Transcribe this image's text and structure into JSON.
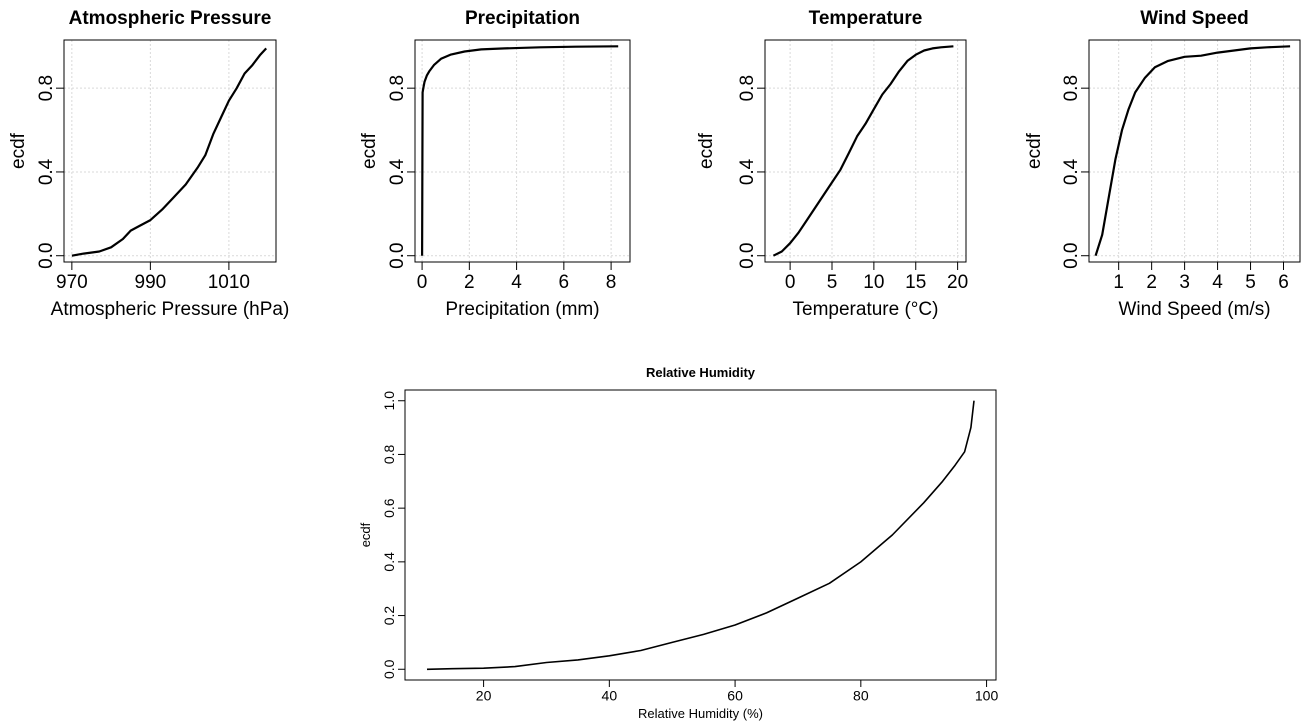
{
  "chart_data": [
    {
      "type": "line",
      "title": "Atmospheric Pressure",
      "xlabel": "Atmospheric Pressure (hPa)",
      "ylabel": "ecdf",
      "xlim": [
        968,
        1022
      ],
      "ylim": [
        -0.03,
        1.03
      ],
      "xticks": [
        970,
        990,
        1010
      ],
      "xtick_labels": [
        "970",
        "990",
        "1010"
      ],
      "yticks": [
        0.0,
        0.4,
        0.8
      ],
      "ytick_labels": [
        "0.0",
        "0.4",
        "0.8"
      ],
      "grid": true,
      "series": [
        {
          "x": [
            970,
            973,
            977,
            980,
            983,
            985,
            987,
            990,
            993,
            996,
            999,
            1002,
            1004,
            1006,
            1008,
            1010,
            1012,
            1014,
            1016,
            1018,
            1019.5
          ],
          "y": [
            0.0,
            0.01,
            0.02,
            0.04,
            0.08,
            0.12,
            0.14,
            0.17,
            0.22,
            0.28,
            0.34,
            0.42,
            0.48,
            0.58,
            0.66,
            0.74,
            0.8,
            0.87,
            0.91,
            0.96,
            0.99
          ]
        }
      ]
    },
    {
      "type": "line",
      "title": "Precipitation",
      "xlabel": "Precipitation (mm)",
      "ylabel": "ecdf",
      "xlim": [
        -0.3,
        8.8
      ],
      "ylim": [
        -0.03,
        1.03
      ],
      "xticks": [
        0,
        2,
        4,
        6,
        8
      ],
      "xtick_labels": [
        "0",
        "2",
        "4",
        "6",
        "8"
      ],
      "yticks": [
        0.0,
        0.4,
        0.8
      ],
      "ytick_labels": [
        "0.0",
        "0.4",
        "0.8"
      ],
      "grid": true,
      "series": [
        {
          "x": [
            0,
            0.02,
            0.05,
            0.1,
            0.2,
            0.3,
            0.5,
            0.8,
            1.2,
            1.8,
            2.5,
            3.5,
            5,
            6.5,
            8.3
          ],
          "y": [
            0.0,
            0.78,
            0.8,
            0.83,
            0.86,
            0.88,
            0.91,
            0.94,
            0.96,
            0.975,
            0.985,
            0.99,
            0.995,
            0.998,
            1.0
          ]
        }
      ]
    },
    {
      "type": "line",
      "title": "Temperature",
      "xlabel": "Temperature (°C)",
      "ylabel": "ecdf",
      "xlim": [
        -3,
        21
      ],
      "ylim": [
        -0.03,
        1.03
      ],
      "xticks": [
        0,
        5,
        10,
        15,
        20
      ],
      "xtick_labels": [
        "0",
        "5",
        "10",
        "15",
        "20"
      ],
      "yticks": [
        0.0,
        0.4,
        0.8
      ],
      "ytick_labels": [
        "0.0",
        "0.4",
        "0.8"
      ],
      "grid": true,
      "series": [
        {
          "x": [
            -2,
            -1,
            0,
            1,
            2,
            3,
            4,
            5,
            6,
            7,
            8,
            9,
            10,
            11,
            12,
            13,
            14,
            15,
            16,
            17,
            18,
            19.5
          ],
          "y": [
            0.0,
            0.02,
            0.06,
            0.11,
            0.17,
            0.23,
            0.29,
            0.35,
            0.41,
            0.49,
            0.57,
            0.63,
            0.7,
            0.77,
            0.82,
            0.88,
            0.93,
            0.96,
            0.98,
            0.99,
            0.995,
            1.0
          ]
        }
      ]
    },
    {
      "type": "line",
      "title": "Wind Speed",
      "xlabel": "Wind Speed (m/s)",
      "ylabel": "ecdf",
      "xlim": [
        0.1,
        6.5
      ],
      "ylim": [
        -0.03,
        1.03
      ],
      "xticks": [
        1,
        2,
        3,
        4,
        5,
        6
      ],
      "xtick_labels": [
        "1",
        "2",
        "3",
        "4",
        "5",
        "6"
      ],
      "yticks": [
        0.0,
        0.4,
        0.8
      ],
      "ytick_labels": [
        "0.0",
        "0.4",
        "0.8"
      ],
      "grid": true,
      "series": [
        {
          "x": [
            0.3,
            0.5,
            0.7,
            0.9,
            1.1,
            1.3,
            1.5,
            1.8,
            2.1,
            2.5,
            3.0,
            3.5,
            4.0,
            4.5,
            5.0,
            5.5,
            6.2
          ],
          "y": [
            0.0,
            0.1,
            0.28,
            0.46,
            0.6,
            0.7,
            0.78,
            0.85,
            0.9,
            0.93,
            0.95,
            0.955,
            0.97,
            0.98,
            0.99,
            0.995,
            1.0
          ]
        }
      ]
    },
    {
      "type": "line",
      "title": "Relative Humidity",
      "xlabel": "Relative Humidity (%)",
      "ylabel": "ecdf",
      "xlim": [
        7.5,
        101.5
      ],
      "ylim": [
        -0.04,
        1.04
      ],
      "xticks": [
        20,
        40,
        60,
        80,
        100
      ],
      "xtick_labels": [
        "20",
        "40",
        "60",
        "80",
        "100"
      ],
      "yticks": [
        0.0,
        0.2,
        0.4,
        0.6,
        0.8,
        1.0
      ],
      "ytick_labels": [
        "0.0",
        "0.2",
        "0.4",
        "0.6",
        "0.8",
        "1.0"
      ],
      "grid": false,
      "series": [
        {
          "x": [
            11,
            15,
            20,
            25,
            30,
            35,
            40,
            45,
            50,
            55,
            60,
            65,
            70,
            75,
            80,
            85,
            90,
            93,
            95,
            96.5,
            97.5,
            98
          ],
          "y": [
            0.0,
            0.002,
            0.004,
            0.01,
            0.025,
            0.035,
            0.05,
            0.07,
            0.1,
            0.13,
            0.165,
            0.21,
            0.265,
            0.32,
            0.4,
            0.5,
            0.62,
            0.7,
            0.76,
            0.81,
            0.9,
            1.0
          ]
        }
      ]
    }
  ]
}
